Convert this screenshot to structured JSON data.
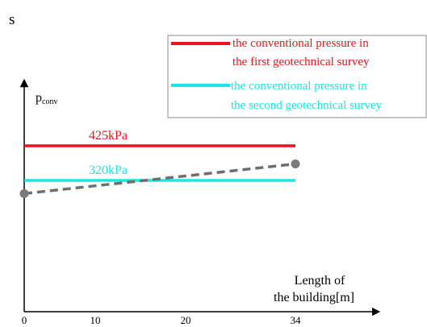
{
  "panel_label": "s",
  "chart_data": {
    "type": "line",
    "ylabel": "p",
    "ylabel_subscript": "conv",
    "xlabel_lines": [
      "Length of",
      "the building[m]"
    ],
    "x_ticks": [
      0,
      10,
      20,
      34
    ],
    "xlim": [
      0,
      34
    ],
    "series": [
      {
        "name_lines": [
          "the conventional pressure in",
          "the first geotechnical survey"
        ],
        "label": "425kPa",
        "x": [
          0,
          34
        ],
        "y": [
          425,
          425
        ],
        "color": "#e8141b",
        "style": "solid"
      },
      {
        "name_lines": [
          "the conventional pressure in",
          "the second geotechnical survey"
        ],
        "label": "320kPa",
        "x": [
          0,
          34
        ],
        "y": [
          320,
          320
        ],
        "color": "#1ae6e6",
        "style": "solid"
      },
      {
        "x": [
          0,
          34
        ],
        "y": [
          280,
          370
        ],
        "color": "#6e6e6e",
        "style": "dashed",
        "markers": true
      }
    ],
    "legend_position": "top-right"
  }
}
